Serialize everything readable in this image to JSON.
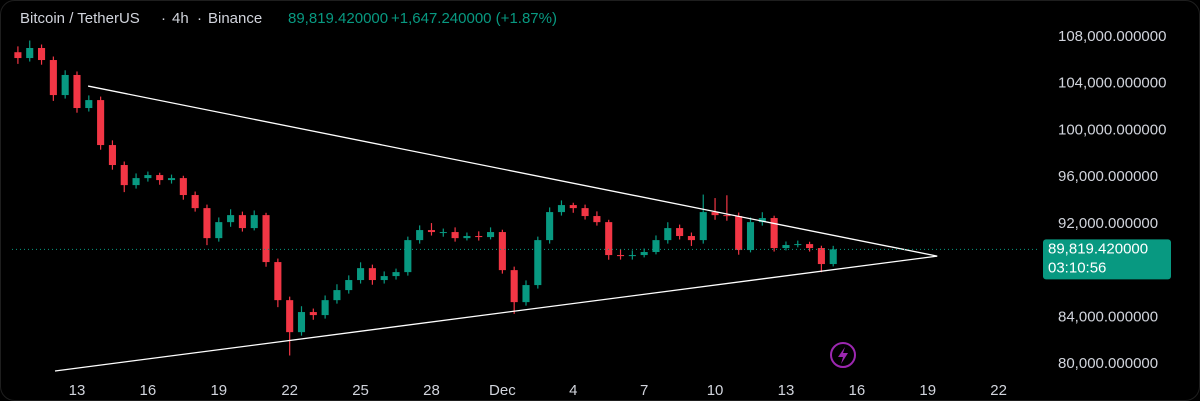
{
  "header": {
    "symbol": "Bitcoin / TetherUS",
    "interval": "4h",
    "exchange": "Binance",
    "price": "89,819.420000",
    "change": "+1,647.240000 (+1.87%)"
  },
  "chart_data": {
    "type": "candlestick",
    "categories": [
      null,
      null,
      null,
      null,
      null,
      "13",
      null,
      null,
      null,
      null,
      null,
      "16",
      null,
      null,
      null,
      null,
      null,
      "19",
      null,
      null,
      null,
      null,
      null,
      "22",
      null,
      null,
      null,
      null,
      null,
      "25",
      null,
      null,
      null,
      null,
      null,
      "28",
      null,
      null,
      null,
      null,
      null,
      "Dec",
      null,
      null,
      null,
      null,
      null,
      "4",
      null,
      null,
      null,
      null,
      null,
      "7",
      null,
      null,
      null,
      null,
      null,
      "10",
      null,
      null,
      null,
      null,
      null,
      "13",
      null,
      null,
      null,
      null,
      null,
      "16",
      null,
      null,
      null,
      null,
      null,
      "19",
      null,
      null,
      null,
      null,
      null,
      "22",
      null,
      null,
      null
    ],
    "open": [
      106700,
      106200,
      107060,
      106030,
      103030,
      104750,
      101920,
      102600,
      98750,
      97040,
      95320,
      95920,
      96180,
      95750,
      95920,
      94470,
      93350,
      90780,
      92150,
      92750,
      91640,
      92750,
      88730,
      85470,
      82730,
      84450,
      84190,
      85470,
      86330,
      87190,
      88210,
      87190,
      87530,
      87870,
      90610,
      91470,
      91300,
      91300,
      90780,
      90960,
      90870,
      91300,
      88040,
      85300,
      86760,
      90610,
      93010,
      93610,
      93350,
      92670,
      92150,
      89330,
      89240,
      89330,
      89590,
      90610,
      91640,
      90960,
      90610,
      93010,
      92750,
      92670,
      89760,
      92150,
      92500,
      89930,
      90190,
      90270,
      89930,
      88560,
      null,
      null,
      null,
      null,
      null,
      null,
      null,
      null,
      null,
      null,
      null,
      null,
      null,
      null,
      null,
      null,
      null
    ],
    "high": [
      107200,
      107700,
      107360,
      106330,
      105150,
      105050,
      103000,
      102900,
      99150,
      97340,
      96320,
      96480,
      96380,
      96220,
      96120,
      94770,
      93650,
      92550,
      93250,
      93050,
      93150,
      92950,
      89030,
      85770,
      84950,
      84750,
      85870,
      86830,
      87590,
      88710,
      88510,
      87930,
      88170,
      90910,
      91870,
      92070,
      91600,
      91700,
      91260,
      91360,
      91700,
      91500,
      88340,
      87160,
      90910,
      93410,
      94010,
      93810,
      93650,
      93070,
      92350,
      89830,
      89730,
      89890,
      91010,
      92140,
      91940,
      91260,
      94510,
      94210,
      94450,
      92970,
      92550,
      93000,
      92700,
      90490,
      90570,
      90470,
      90130,
      90120,
      null,
      null,
      null,
      null,
      null,
      null,
      null,
      null,
      null,
      null,
      null,
      null,
      null,
      null,
      null,
      null,
      null
    ],
    "low": [
      105700,
      105900,
      105630,
      102530,
      102730,
      101520,
      101620,
      98350,
      96640,
      94720,
      95020,
      95620,
      95350,
      95450,
      94070,
      93050,
      90180,
      90480,
      91750,
      91340,
      91440,
      88330,
      84870,
      80730,
      82430,
      83790,
      83890,
      85170,
      86030,
      86890,
      86790,
      86890,
      87230,
      87570,
      90310,
      91000,
      90900,
      90480,
      90580,
      90570,
      90670,
      87740,
      84300,
      85000,
      86460,
      90310,
      92710,
      92950,
      92370,
      91850,
      88930,
      88940,
      88940,
      89130,
      89390,
      90310,
      90660,
      90110,
      90310,
      92350,
      92270,
      89360,
      89560,
      91850,
      89630,
      89730,
      89990,
      89630,
      87860,
      88360,
      null,
      null,
      null,
      null,
      null,
      null,
      null,
      null,
      null,
      null,
      null,
      null,
      null,
      null,
      null,
      null,
      null
    ],
    "close": [
      106200,
      107060,
      106030,
      103030,
      104750,
      101920,
      102600,
      98750,
      97040,
      95320,
      95920,
      96180,
      95750,
      95920,
      94470,
      93350,
      90780,
      92150,
      92750,
      91640,
      92750,
      88730,
      85470,
      82730,
      84450,
      84190,
      85470,
      86330,
      87190,
      88210,
      87190,
      87530,
      87870,
      90610,
      91470,
      91300,
      91300,
      90780,
      90960,
      90870,
      91300,
      88040,
      85300,
      86760,
      90610,
      93010,
      93610,
      93350,
      92670,
      92150,
      89330,
      89240,
      89330,
      89590,
      90610,
      91640,
      90960,
      90610,
      93010,
      92750,
      92670,
      89760,
      92150,
      92500,
      89930,
      90190,
      90270,
      89930,
      88560,
      89819.42,
      null,
      null,
      null,
      null,
      null,
      null,
      null,
      null,
      null,
      null,
      null,
      null,
      null,
      null,
      null,
      null,
      null
    ],
    "up_color": "#089981",
    "down_color": "#f23645",
    "ylim": [
      79060,
      111170
    ],
    "yticks": [
      {
        "value": 80000,
        "label": "80,000.000000"
      },
      {
        "value": 84000,
        "label": "84,000.000000"
      },
      {
        "value": 92000,
        "label": "92,000.000000"
      },
      {
        "value": 96000,
        "label": "96,000.000000"
      },
      {
        "value": 100000,
        "label": "100,000.000000"
      },
      {
        "value": 104000,
        "label": "104,000.000000"
      },
      {
        "value": 108000,
        "label": "108,000.000000"
      }
    ],
    "grid": false,
    "trendlines": [
      {
        "x": [
          5.94,
          77.8
        ],
        "y": [
          103800,
          89240
        ],
        "color": "#ffffff"
      },
      {
        "x": [
          3.14,
          77.8
        ],
        "y": [
          79400,
          89240
        ],
        "color": "#ffffff"
      }
    ],
    "price_line": {
      "value": 89819.42,
      "label": "89,819.420000",
      "countdown": "03:10:56",
      "color": "#089981"
    }
  }
}
